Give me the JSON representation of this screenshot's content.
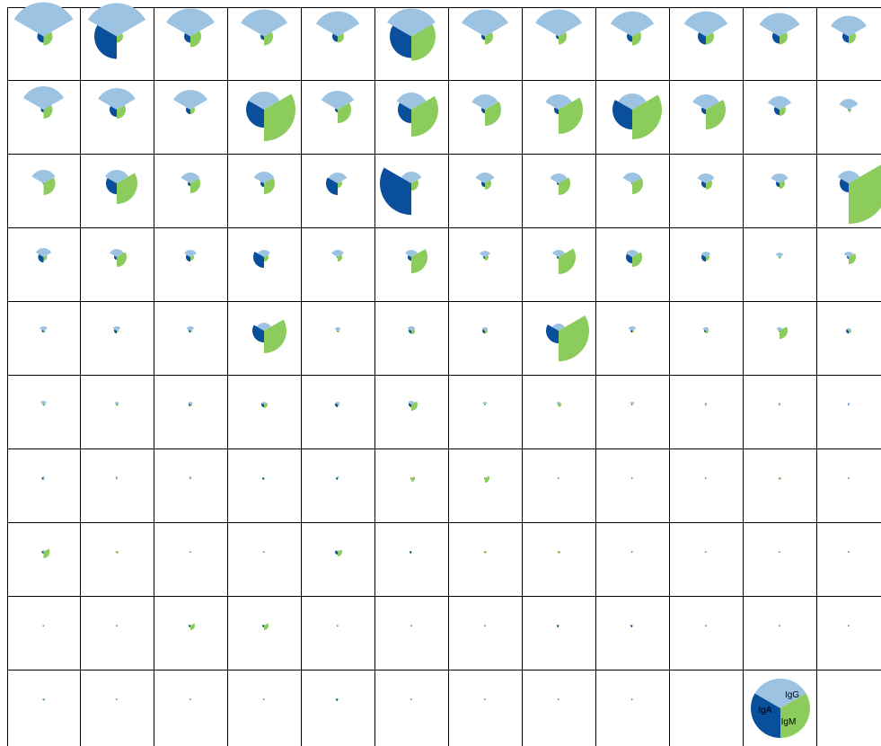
{
  "chart_data": {
    "type": "rose-pie-grid",
    "rows": 10,
    "cols": 12,
    "colors": {
      "IgG": "#9dc3e3",
      "IgA": "#0a4f9c",
      "IgM": "#8ccc5c"
    },
    "legend": {
      "labels": [
        "IgG",
        "IgA",
        "IgM"
      ],
      "placement": "bottom-right"
    },
    "cells": [
      [
        [
          38,
          7,
          10
        ],
        [
          37,
          25,
          7
        ],
        [
          31,
          7,
          12
        ],
        [
          30,
          4,
          10
        ],
        [
          28,
          6,
          7
        ],
        [
          31,
          24,
          27
        ],
        [
          30,
          4,
          9
        ],
        [
          30,
          3,
          9
        ],
        [
          28,
          6,
          10
        ],
        [
          28,
          9,
          9
        ],
        [
          26,
          8,
          9
        ],
        [
          23,
          7,
          8
        ]
      ],
      [
        [
          26,
          3,
          10
        ],
        [
          24,
          8,
          10
        ],
        [
          22,
          5,
          5
        ],
        [
          20,
          20,
          35
        ],
        [
          21,
          3,
          15
        ],
        [
          19,
          15,
          30
        ],
        [
          17,
          4,
          18
        ],
        [
          17,
          5,
          27
        ],
        [
          18,
          22,
          33
        ],
        [
          17,
          5,
          22
        ],
        [
          15,
          6,
          7
        ],
        [
          12,
          1,
          3
        ]
      ],
      [
        [
          15,
          1,
          13
        ],
        [
          15,
          12,
          23
        ],
        [
          12,
          3,
          11
        ],
        [
          13,
          4,
          12
        ],
        [
          12,
          13,
          5
        ],
        [
          13,
          35,
          8
        ],
        [
          12,
          4,
          7
        ],
        [
          11,
          2,
          13
        ],
        [
          12,
          1,
          12
        ],
        [
          11,
          5,
          7
        ],
        [
          11,
          4,
          6
        ],
        [
          14,
          10,
          45
        ]
      ],
      [
        [
          10,
          6,
          4
        ],
        [
          9,
          3,
          11
        ],
        [
          8,
          5,
          4
        ],
        [
          8,
          12,
          5
        ],
        [
          8,
          1,
          5
        ],
        [
          8,
          4,
          18
        ],
        [
          7,
          2,
          4
        ],
        [
          8,
          2,
          19
        ],
        [
          8,
          7,
          11
        ],
        [
          6,
          5,
          4
        ],
        [
          5,
          1,
          2
        ],
        [
          6,
          2,
          8
        ]
      ],
      [
        [
          5,
          2,
          2
        ],
        [
          5,
          3,
          2
        ],
        [
          5,
          2,
          2
        ],
        [
          9,
          13,
          25
        ],
        [
          4,
          1,
          2
        ],
        [
          5,
          3,
          4
        ],
        [
          4,
          3,
          3
        ],
        [
          8,
          14,
          34
        ],
        [
          5,
          2,
          2
        ],
        [
          4,
          2,
          3
        ],
        [
          4,
          1,
          9
        ],
        [
          3,
          3,
          3
        ]
      ],
      [
        [
          4,
          1,
          2
        ],
        [
          3,
          1,
          2
        ],
        [
          3,
          2,
          2
        ],
        [
          3,
          3,
          4
        ],
        [
          3,
          3,
          2
        ],
        [
          4,
          3,
          7
        ],
        [
          3,
          1,
          1
        ],
        [
          3,
          1,
          3
        ],
        [
          3,
          1,
          1
        ],
        [
          2,
          1,
          1
        ],
        [
          2,
          1,
          1
        ],
        [
          2,
          1,
          1
        ]
      ],
      [
        [
          2,
          2,
          1
        ],
        [
          2,
          1,
          1
        ],
        [
          2,
          1,
          1
        ],
        [
          1,
          2,
          1
        ],
        [
          2,
          2,
          1
        ],
        [
          1,
          1,
          4
        ],
        [
          1,
          1,
          5
        ],
        [
          1,
          1,
          1
        ],
        [
          1,
          1,
          1
        ],
        [
          1,
          1,
          1
        ],
        [
          1,
          1,
          2
        ],
        [
          1,
          1,
          1
        ]
      ],
      [
        [
          2,
          2,
          7
        ],
        [
          1,
          1,
          2
        ],
        [
          1,
          1,
          1
        ],
        [
          1,
          1,
          1
        ],
        [
          2,
          3,
          5
        ],
        [
          1,
          2,
          1
        ],
        [
          1,
          1,
          2
        ],
        [
          1,
          1,
          2
        ],
        [
          1,
          1,
          1
        ],
        [
          1,
          1,
          1
        ],
        [
          1,
          1,
          1
        ],
        [
          1,
          1,
          1
        ]
      ],
      [
        [
          1,
          1,
          1
        ],
        [
          1,
          1,
          1
        ],
        [
          1,
          2,
          5
        ],
        [
          1,
          2,
          5
        ],
        [
          1,
          1,
          1
        ],
        [
          1,
          1,
          1
        ],
        [
          1,
          1,
          1
        ],
        [
          1,
          2,
          1
        ],
        [
          1,
          2,
          1
        ],
        [
          1,
          1,
          1
        ],
        [
          1,
          1,
          1
        ],
        [
          1,
          1,
          1
        ]
      ],
      [
        [
          1,
          1,
          2
        ],
        [
          1,
          1,
          1
        ],
        [
          1,
          1,
          1
        ],
        [
          1,
          1,
          1
        ],
        [
          1,
          2,
          1
        ],
        [
          1,
          1,
          1
        ],
        [
          1,
          1,
          1
        ],
        [
          1,
          1,
          1
        ],
        [
          1,
          1,
          1
        ],
        null,
        null,
        null
      ]
    ]
  }
}
